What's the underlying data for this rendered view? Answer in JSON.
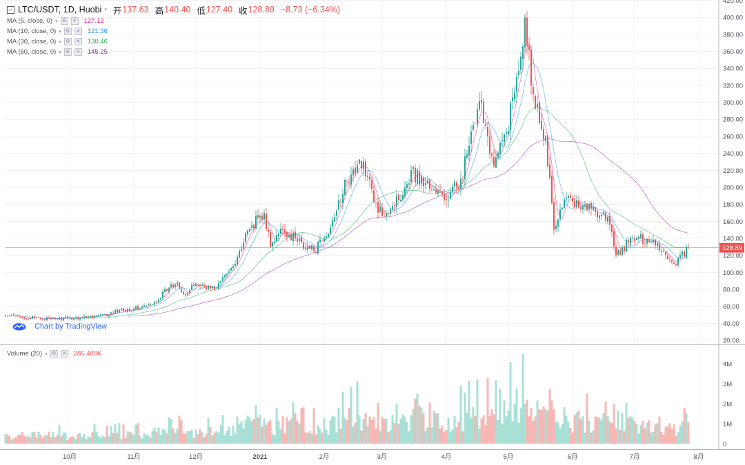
{
  "legend": {
    "symbol": "LTC/USDT, 1D, Huobi",
    "open_label": "开",
    "open": "137.63",
    "high_label": "高",
    "high": "140.40",
    "low_label": "低",
    "low": "127.40",
    "close_label": "收",
    "close": "128.89",
    "change": "−8.73 (−6.34%)"
  },
  "studies": [
    {
      "label": "MA (5, close, 0)",
      "value": "127.12",
      "color": "#e91e8c"
    },
    {
      "label": "MA (10, close, 0)",
      "value": "121.36",
      "color": "#2196f3"
    },
    {
      "label": "MA (30, close, 0)",
      "value": "130.46",
      "color": "#22b04c"
    },
    {
      "label": "MA (60, close, 0)",
      "value": "145.25",
      "color": "#9c27b0"
    }
  ],
  "volume_legend": {
    "label": "Volume (20)",
    "value": "285.409K"
  },
  "watermark": "Chart by TradingView",
  "colors": {
    "up": "#26a69a",
    "down": "#ef5350",
    "vol_up": "#a8e0d6",
    "vol_down": "#f7b7b4",
    "price_line": "#ef5350",
    "grid": "#e0e3eb"
  },
  "chart_data": {
    "type": "candlestick",
    "title": "LTC/USDT, 1D, Huobi",
    "last_price": 128.89,
    "price_axis": {
      "min": 20,
      "max": 420,
      "ticks": [
        20,
        40,
        60,
        80,
        100,
        120,
        140,
        160,
        180,
        200,
        220,
        240,
        260,
        280,
        300,
        320,
        340,
        360,
        380,
        400,
        420
      ]
    },
    "volume_axis": {
      "ticks": [
        "0",
        "1M",
        "2M",
        "3M",
        "4M"
      ]
    },
    "time_axis": {
      "ticks": [
        "10月",
        "11月",
        "12月",
        "2021",
        "2月",
        "3月",
        "4月",
        "5月",
        "6月",
        "7月",
        "8月"
      ]
    },
    "price_path": [
      {
        "date": "2020-09-01",
        "close": 49
      },
      {
        "date": "2020-09-08",
        "close": 47
      },
      {
        "date": "2020-09-15",
        "close": 46
      },
      {
        "date": "2020-09-22",
        "close": 45
      },
      {
        "date": "2020-10-01",
        "close": 46
      },
      {
        "date": "2020-10-10",
        "close": 48
      },
      {
        "date": "2020-10-20",
        "close": 50
      },
      {
        "date": "2020-10-25",
        "close": 56
      },
      {
        "date": "2020-11-01",
        "close": 57
      },
      {
        "date": "2020-11-10",
        "close": 62
      },
      {
        "date": "2020-11-18",
        "close": 82
      },
      {
        "date": "2020-11-22",
        "close": 88
      },
      {
        "date": "2020-11-26",
        "close": 73
      },
      {
        "date": "2020-12-01",
        "close": 87
      },
      {
        "date": "2020-12-10",
        "close": 80
      },
      {
        "date": "2020-12-18",
        "close": 105
      },
      {
        "date": "2020-12-24",
        "close": 135
      },
      {
        "date": "2020-12-28",
        "close": 155
      },
      {
        "date": "2021-01-03",
        "close": 170
      },
      {
        "date": "2021-01-06",
        "close": 130
      },
      {
        "date": "2021-01-12",
        "close": 150
      },
      {
        "date": "2021-01-18",
        "close": 140
      },
      {
        "date": "2021-01-27",
        "close": 125
      },
      {
        "date": "2021-02-03",
        "close": 145
      },
      {
        "date": "2021-02-08",
        "close": 185
      },
      {
        "date": "2021-02-14",
        "close": 215
      },
      {
        "date": "2021-02-20",
        "close": 230
      },
      {
        "date": "2021-02-27",
        "close": 170
      },
      {
        "date": "2021-03-05",
        "close": 175
      },
      {
        "date": "2021-03-12",
        "close": 200
      },
      {
        "date": "2021-03-15",
        "close": 220
      },
      {
        "date": "2021-03-22",
        "close": 205
      },
      {
        "date": "2021-04-01",
        "close": 185
      },
      {
        "date": "2021-04-08",
        "close": 210
      },
      {
        "date": "2021-04-15",
        "close": 275
      },
      {
        "date": "2021-04-18",
        "close": 300
      },
      {
        "date": "2021-04-24",
        "close": 225
      },
      {
        "date": "2021-04-30",
        "close": 265
      },
      {
        "date": "2021-05-05",
        "close": 330
      },
      {
        "date": "2021-05-09",
        "close": 400
      },
      {
        "date": "2021-05-13",
        "close": 310
      },
      {
        "date": "2021-05-19",
        "close": 260
      },
      {
        "date": "2021-05-23",
        "close": 150
      },
      {
        "date": "2021-05-28",
        "close": 185
      },
      {
        "date": "2021-06-03",
        "close": 185
      },
      {
        "date": "2021-06-10",
        "close": 175
      },
      {
        "date": "2021-06-18",
        "close": 165
      },
      {
        "date": "2021-06-22",
        "close": 120
      },
      {
        "date": "2021-06-30",
        "close": 140
      },
      {
        "date": "2021-07-10",
        "close": 138
      },
      {
        "date": "2021-07-20",
        "close": 110
      },
      {
        "date": "2021-07-27",
        "close": 128.89
      }
    ],
    "ma_final": {
      "MA5": 127.12,
      "MA10": 121.36,
      "MA30": 130.46,
      "MA60": 145.25
    },
    "volume_last": "285.409K"
  }
}
